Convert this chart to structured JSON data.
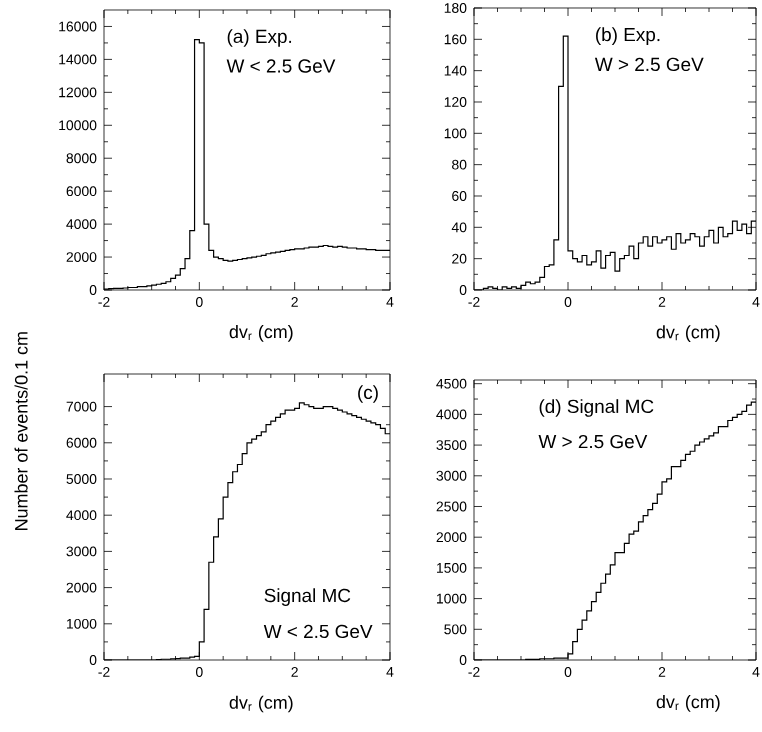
{
  "chart_data": [
    {
      "type": "histogram",
      "xlabel": "dv$_{r}$ (cm)",
      "annotations": [
        "(a) Exp.",
        "W < 2.5 GeV"
      ],
      "bins": [
        -2,
        -1.9,
        -1.8,
        -1.7,
        -1.6,
        -1.5,
        -1.4,
        -1.3,
        -1.2,
        -1.1,
        -1,
        -0.9,
        -0.8,
        -0.7,
        -0.6,
        -0.5,
        -0.4,
        -0.3,
        -0.2,
        -0.1,
        0,
        0.1,
        0.2,
        0.3,
        0.4,
        0.5,
        0.6,
        0.7,
        0.8,
        0.9,
        1,
        1.1,
        1.2,
        1.3,
        1.4,
        1.5,
        1.6,
        1.7,
        1.8,
        1.9,
        2,
        2.1,
        2.2,
        2.3,
        2.4,
        2.5,
        2.6,
        2.7,
        2.8,
        2.9,
        3,
        3.1,
        3.2,
        3.3,
        3.4,
        3.5,
        3.6,
        3.7,
        3.8,
        3.9,
        4
      ],
      "values": [
        50,
        80,
        100,
        100,
        120,
        150,
        150,
        200,
        200,
        250,
        300,
        350,
        400,
        500,
        700,
        900,
        1300,
        1900,
        3600,
        15200,
        15000,
        4000,
        2400,
        2000,
        1900,
        1800,
        1750,
        1800,
        1850,
        1900,
        1950,
        2000,
        2050,
        2100,
        2200,
        2250,
        2300,
        2350,
        2400,
        2450,
        2500,
        2500,
        2550,
        2600,
        2600,
        2650,
        2700,
        2650,
        2600,
        2650,
        2600,
        2550,
        2550,
        2500,
        2500,
        2450,
        2450,
        2400,
        2400,
        2400
      ],
      "color": "#000000",
      "xlim": [
        -2,
        4
      ],
      "xticks": [
        -2,
        0,
        2,
        4
      ],
      "ylim": [
        0,
        17000
      ],
      "yticks": [
        0,
        2000,
        4000,
        6000,
        8000,
        10000,
        12000,
        14000,
        16000
      ]
    },
    {
      "type": "histogram",
      "xlabel": "dv$_{r}$ (cm)",
      "annotations": [
        "(b) Exp.",
        "W > 2.5 GeV"
      ],
      "bins": [
        -2,
        -1.9,
        -1.8,
        -1.7,
        -1.6,
        -1.5,
        -1.4,
        -1.3,
        -1.2,
        -1.1,
        -1,
        -0.9,
        -0.8,
        -0.7,
        -0.6,
        -0.5,
        -0.4,
        -0.3,
        -0.2,
        -0.1,
        0,
        0.1,
        0.2,
        0.3,
        0.4,
        0.5,
        0.6,
        0.7,
        0.8,
        0.9,
        1,
        1.1,
        1.2,
        1.3,
        1.4,
        1.5,
        1.6,
        1.7,
        1.8,
        1.9,
        2,
        2.1,
        2.2,
        2.3,
        2.4,
        2.5,
        2.6,
        2.7,
        2.8,
        2.9,
        3,
        3.1,
        3.2,
        3.3,
        3.4,
        3.5,
        3.6,
        3.7,
        3.8,
        3.9,
        4
      ],
      "values": [
        0,
        0,
        1,
        2,
        1,
        0,
        2,
        1,
        2,
        1,
        3,
        5,
        4,
        5,
        8,
        15,
        16,
        32,
        130,
        162,
        25,
        20,
        18,
        22,
        16,
        18,
        25,
        14,
        22,
        24,
        12,
        20,
        22,
        28,
        20,
        30,
        34,
        28,
        34,
        30,
        32,
        34,
        26,
        36,
        30,
        32,
        36,
        34,
        28,
        34,
        38,
        30,
        40,
        34,
        36,
        44,
        38,
        42,
        36,
        44
      ],
      "color": "#000000",
      "xlim": [
        -2,
        4
      ],
      "xticks": [
        -2,
        0,
        2,
        4
      ],
      "ylim": [
        0,
        180
      ],
      "yticks": [
        0,
        20,
        40,
        60,
        80,
        100,
        120,
        140,
        160,
        180
      ]
    },
    {
      "type": "histogram",
      "xlabel": "dv$_{r}$ (cm)",
      "ylabel": "Number of events/0.1 cm",
      "annotations": [
        "(c)",
        "Signal MC",
        "W < 2.5 GeV"
      ],
      "bins": [
        -2,
        -1.9,
        -1.8,
        -1.7,
        -1.6,
        -1.5,
        -1.4,
        -1.3,
        -1.2,
        -1.1,
        -1,
        -0.9,
        -0.8,
        -0.7,
        -0.6,
        -0.5,
        -0.4,
        -0.3,
        -0.2,
        -0.1,
        0,
        0.1,
        0.2,
        0.3,
        0.4,
        0.5,
        0.6,
        0.7,
        0.8,
        0.9,
        1,
        1.1,
        1.2,
        1.3,
        1.4,
        1.5,
        1.6,
        1.7,
        1.8,
        1.9,
        2,
        2.1,
        2.2,
        2.3,
        2.4,
        2.5,
        2.6,
        2.7,
        2.8,
        2.9,
        3,
        3.1,
        3.2,
        3.3,
        3.4,
        3.5,
        3.6,
        3.7,
        3.8,
        3.9,
        4
      ],
      "values": [
        0,
        0,
        0,
        0,
        0,
        0,
        0,
        0,
        0,
        0,
        0,
        10,
        20,
        20,
        30,
        40,
        50,
        50,
        80,
        100,
        500,
        1400,
        2700,
        3400,
        3900,
        4500,
        4900,
        5200,
        5400,
        5700,
        6000,
        6100,
        6200,
        6300,
        6500,
        6600,
        6700,
        6800,
        6900,
        6900,
        6950,
        7100,
        7050,
        7000,
        6950,
        6950,
        7000,
        7000,
        6950,
        6900,
        6850,
        6800,
        6750,
        6700,
        6650,
        6600,
        6550,
        6500,
        6400,
        6250
      ],
      "color": "#000000",
      "xlim": [
        -2,
        4
      ],
      "xticks": [
        -2,
        0,
        2,
        4
      ],
      "ylim": [
        0,
        7900
      ],
      "yticks": [
        0,
        1000,
        2000,
        3000,
        4000,
        5000,
        6000,
        7000
      ]
    },
    {
      "type": "histogram",
      "xlabel": "dv$_{r}$ (cm)",
      "annotations": [
        "(d) Signal MC",
        "W > 2.5 GeV"
      ],
      "bins": [
        -2,
        -1.9,
        -1.8,
        -1.7,
        -1.6,
        -1.5,
        -1.4,
        -1.3,
        -1.2,
        -1.1,
        -1,
        -0.9,
        -0.8,
        -0.7,
        -0.6,
        -0.5,
        -0.4,
        -0.3,
        -0.2,
        -0.1,
        0,
        0.1,
        0.2,
        0.3,
        0.4,
        0.5,
        0.6,
        0.7,
        0.8,
        0.9,
        1,
        1.1,
        1.2,
        1.3,
        1.4,
        1.5,
        1.6,
        1.7,
        1.8,
        1.9,
        2,
        2.1,
        2.2,
        2.3,
        2.4,
        2.5,
        2.6,
        2.7,
        2.8,
        2.9,
        3,
        3.1,
        3.2,
        3.3,
        3.4,
        3.5,
        3.6,
        3.7,
        3.8,
        3.9,
        4
      ],
      "values": [
        0,
        0,
        0,
        0,
        0,
        0,
        0,
        0,
        0,
        0,
        0,
        10,
        10,
        10,
        20,
        20,
        20,
        30,
        30,
        30,
        100,
        300,
        500,
        650,
        800,
        950,
        1100,
        1250,
        1400,
        1550,
        1750,
        1750,
        1900,
        2050,
        2100,
        2250,
        2350,
        2450,
        2550,
        2700,
        2900,
        2950,
        3150,
        3150,
        3250,
        3350,
        3400,
        3500,
        3550,
        3600,
        3650,
        3700,
        3800,
        3800,
        3900,
        3950,
        4000,
        4050,
        4150,
        4200
      ],
      "color": "#000000",
      "xlim": [
        -2,
        4
      ],
      "xticks": [
        -2,
        0,
        2,
        4
      ],
      "ylim": [
        0,
        4560
      ],
      "yticks": [
        0,
        500,
        1000,
        1500,
        2000,
        2500,
        3000,
        3500,
        4000,
        4500
      ]
    }
  ]
}
